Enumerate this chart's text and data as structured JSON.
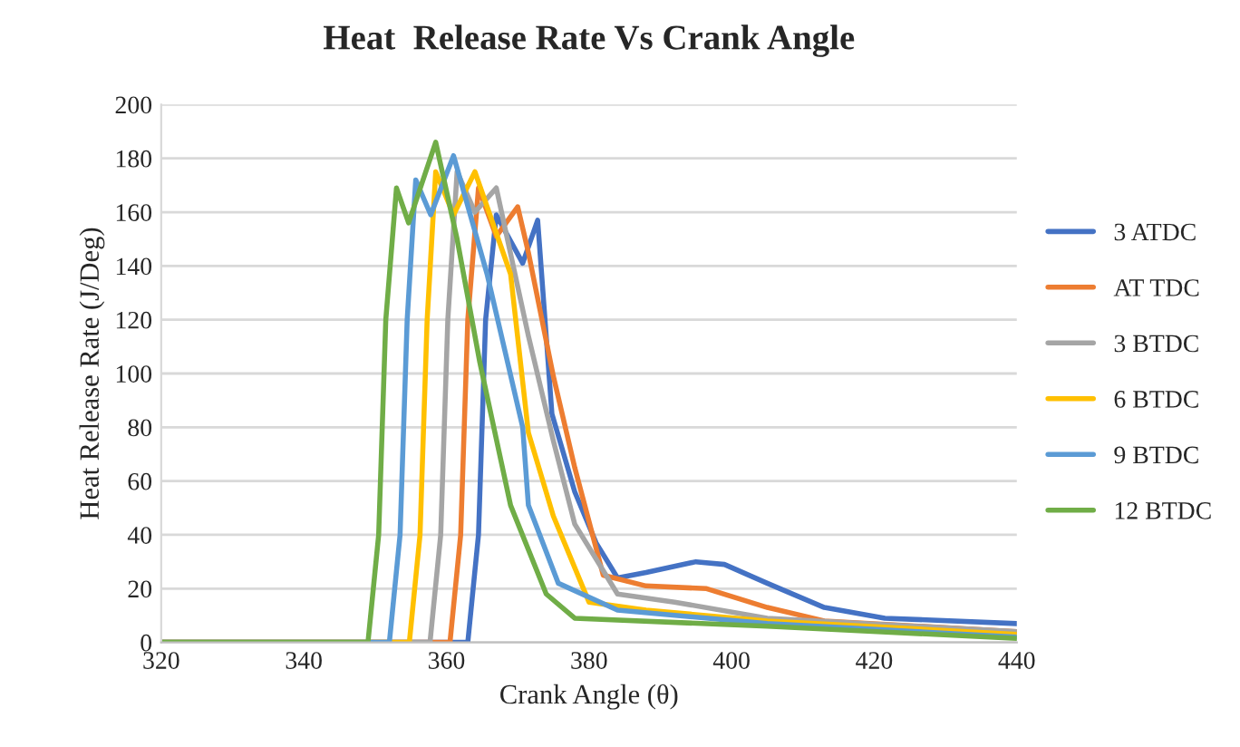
{
  "chart_data": {
    "type": "line",
    "title": "Heat  Release Rate Vs Crank Angle",
    "xlabel": "Crank Angle (θ)",
    "ylabel": "Heat Release Rate (J/Deg)",
    "xlim": [
      320,
      440
    ],
    "xticks": [
      320,
      340,
      360,
      380,
      400,
      420,
      440
    ],
    "ylim": [
      0,
      200
    ],
    "yticks": [
      0,
      20,
      40,
      60,
      80,
      100,
      120,
      140,
      160,
      180,
      200
    ],
    "grid": "y",
    "legend": "right",
    "marker": "none",
    "line_style": "solid",
    "series": [
      {
        "name": "3 ATDC",
        "color": "#4472c4",
        "x": [
          320,
          363,
          364.5,
          365.5,
          367,
          370.7,
          372.8,
          374.8,
          378,
          381,
          384,
          388,
          395,
          399,
          405,
          413,
          421.5,
          440
        ],
        "values": [
          0,
          0,
          40,
          120,
          159,
          141,
          157,
          85,
          56,
          37,
          24,
          26,
          30,
          29,
          22,
          13,
          9,
          7
        ]
      },
      {
        "name": "AT TDC",
        "color": "#ed7d31",
        "x": [
          320,
          360.5,
          362,
          363,
          364.5,
          367,
          370,
          371.5,
          375,
          378,
          382,
          388,
          396.5,
          405,
          413,
          440
        ],
        "values": [
          0,
          0,
          40,
          120,
          169,
          151,
          162,
          145,
          99,
          65,
          25,
          21,
          20,
          13,
          8,
          4
        ]
      },
      {
        "name": "3 BTDC",
        "color": "#a5a5a5",
        "x": [
          320,
          357.7,
          359.2,
          360.2,
          361.5,
          364,
          367,
          371.5,
          375,
          378,
          384,
          392,
          405,
          440
        ],
        "values": [
          0,
          0,
          40,
          120,
          175,
          160,
          169,
          114,
          75,
          44,
          18,
          15,
          9,
          4
        ]
      },
      {
        "name": "6 BTDC",
        "color": "#ffc000",
        "x": [
          320,
          354.8,
          356.3,
          357.3,
          358.5,
          361,
          364,
          369,
          371.5,
          375,
          380,
          388,
          405,
          440
        ],
        "values": [
          0,
          0,
          40,
          120,
          175,
          159,
          175,
          137,
          78,
          47,
          15,
          12,
          8,
          3
        ]
      },
      {
        "name": "9 BTDC",
        "color": "#5b9bd5",
        "x": [
          320,
          352,
          353.5,
          354.5,
          355.7,
          357.8,
          361,
          365.7,
          370.7,
          371.5,
          375.7,
          384,
          405,
          440
        ],
        "values": [
          0,
          0,
          40,
          120,
          172,
          159,
          181,
          137,
          80,
          51,
          22,
          12,
          7,
          2
        ]
      },
      {
        "name": "12 BTDC",
        "color": "#70ad47",
        "x": [
          320,
          349,
          350.5,
          351.5,
          353,
          354.7,
          358.5,
          361.5,
          364.7,
          369,
          374,
          378,
          405,
          440
        ],
        "values": [
          0,
          0,
          40,
          120,
          169,
          156,
          186,
          150,
          104,
          51,
          18,
          9,
          6,
          1.5
        ]
      }
    ]
  }
}
